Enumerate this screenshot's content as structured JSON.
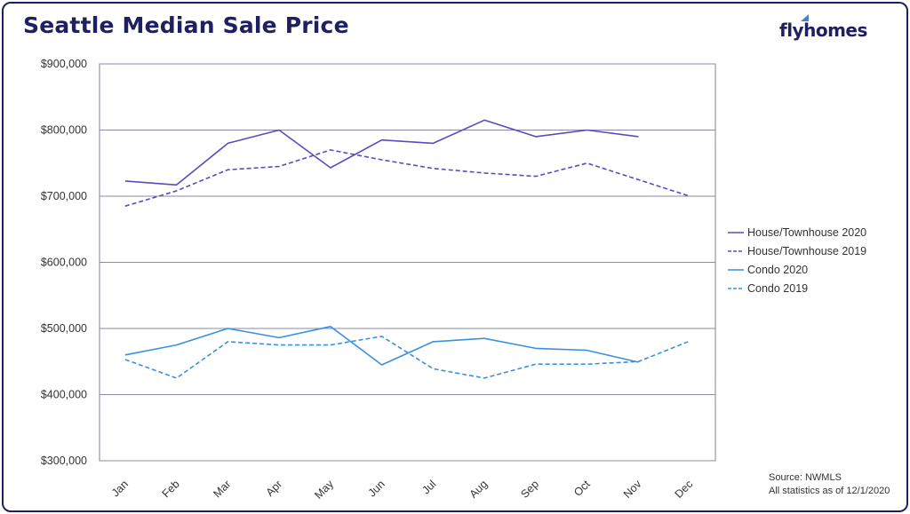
{
  "header": {
    "title": "Seattle Median Sale Price",
    "brand": "flyhomes"
  },
  "footer": {
    "source": "Source: NWMLS",
    "note": "All statistics as of 12/1/2020"
  },
  "colors": {
    "house": "#5b4bbd",
    "condo": "#3a90e0",
    "frame": "#1f2060"
  },
  "chart_data": {
    "type": "line",
    "title": "Seattle Median Sale Price",
    "x": [
      "Jan",
      "Feb",
      "Mar",
      "Apr",
      "May",
      "Jun",
      "Jul",
      "Aug",
      "Sep",
      "Oct",
      "Nov",
      "Dec"
    ],
    "ylim": [
      300000,
      900000
    ],
    "yticks": [
      "$300,000",
      "$400,000",
      "$500,000",
      "$600,000",
      "$700,000",
      "$800,000",
      "$900,000"
    ],
    "grid": true,
    "legend_position": "right",
    "series": [
      {
        "name": "House/Townhouse 2020",
        "style": "solid",
        "color": "#5b4bbd",
        "values": [
          723000,
          717000,
          780000,
          800000,
          743000,
          785000,
          780000,
          815000,
          790000,
          800000,
          790000,
          null
        ]
      },
      {
        "name": "House/Townhouse 2019",
        "style": "dashed",
        "color": "#5b4bbd",
        "values": [
          685000,
          708000,
          740000,
          745000,
          770000,
          755000,
          742000,
          735000,
          730000,
          750000,
          725000,
          700000
        ]
      },
      {
        "name": "Condo 2020",
        "style": "solid",
        "color": "#3a90e0",
        "values": [
          460000,
          475000,
          500000,
          486000,
          503000,
          445000,
          480000,
          485000,
          470000,
          467000,
          449000,
          null
        ]
      },
      {
        "name": "Condo 2019",
        "style": "dashed",
        "color": "#3a90e0",
        "values": [
          453000,
          425000,
          480000,
          475000,
          475000,
          488000,
          439000,
          425000,
          446000,
          446000,
          450000,
          481000
        ]
      }
    ]
  }
}
